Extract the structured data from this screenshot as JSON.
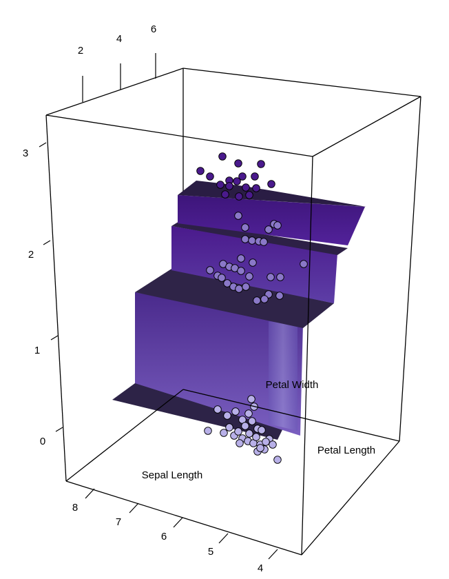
{
  "chart_data": {
    "type": "surface3d-scatter",
    "axes": {
      "x": {
        "label": "Sepal Length",
        "range": [
          4,
          8
        ],
        "ticks": [
          "4",
          "5",
          "6",
          "7",
          "8"
        ]
      },
      "y": {
        "label": "Petal Length",
        "range": [
          1,
          7
        ],
        "ticks": [
          "2",
          "4",
          "6"
        ]
      },
      "z": {
        "label": "Petal Width",
        "range": [
          0,
          3
        ],
        "ticks": [
          "0",
          "1",
          "2",
          "3"
        ]
      }
    },
    "surface": {
      "description_levels": [
        {
          "petal_length_from": 1.0,
          "petal_length_to": 2.5,
          "petal_width": 0.25
        },
        {
          "petal_length_from": 2.5,
          "petal_length_to": 4.8,
          "petal_width": 1.33
        },
        {
          "petal_length_from": 4.8,
          "petal_length_to": 5.6,
          "petal_width": 1.85
        },
        {
          "petal_length_from": 5.6,
          "petal_length_to": 7.0,
          "petal_width": 2.2
        }
      ]
    },
    "colors": {
      "dark": "#2d1e4a",
      "mid": "#4a1c8c",
      "light": "#8a7ccc",
      "point_light": "#b8b0e8",
      "point_dark": "#4a1a8c"
    },
    "point_groups": [
      {
        "name": "",
        "count": 50,
        "sepal_length_range": [
          4.3,
          5.8
        ],
        "petal_length_range": [
          1.0,
          1.9
        ],
        "petal_width_range": [
          0.1,
          0.6
        ]
      },
      {
        "name": "",
        "count": 50,
        "sepal_length_range": [
          4.9,
          7.0
        ],
        "petal_length_range": [
          3.0,
          5.1
        ],
        "petal_width_range": [
          1.0,
          1.8
        ]
      },
      {
        "name": "",
        "count": 50,
        "sepal_length_range": [
          4.9,
          7.9
        ],
        "petal_length_range": [
          4.5,
          6.9
        ],
        "petal_width_range": [
          1.4,
          2.5
        ]
      }
    ]
  }
}
